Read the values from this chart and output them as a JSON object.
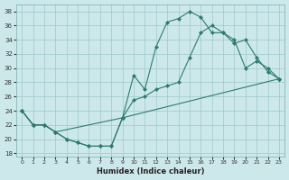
{
  "xlabel": "Humidex (Indice chaleur)",
  "bg_color": "#cce8ea",
  "grid_color": "#9ec8cc",
  "line_color": "#2d7b6e",
  "xlim": [
    -0.5,
    23.5
  ],
  "ylim": [
    17.5,
    39
  ],
  "xticks": [
    0,
    1,
    2,
    3,
    4,
    5,
    6,
    7,
    8,
    9,
    10,
    11,
    12,
    13,
    14,
    15,
    16,
    17,
    18,
    19,
    20,
    21,
    22,
    23
  ],
  "yticks": [
    18,
    20,
    22,
    24,
    26,
    28,
    30,
    32,
    34,
    36,
    38
  ],
  "line1_x": [
    0,
    1,
    2,
    3,
    4,
    5,
    6,
    7,
    8,
    9,
    10,
    11,
    12,
    13,
    14,
    15,
    16,
    17,
    18,
    19,
    20,
    21,
    22,
    23
  ],
  "line1_y": [
    24,
    22,
    22,
    21,
    20,
    19.5,
    19,
    19,
    19,
    23,
    29,
    27,
    33,
    36.5,
    37,
    38,
    37.2,
    35,
    35,
    34,
    30,
    31,
    30,
    28.5
  ],
  "line2_x": [
    0,
    1,
    2,
    3,
    9,
    10,
    11,
    12,
    13,
    14,
    15,
    16,
    17,
    18,
    19,
    20,
    21,
    22,
    23
  ],
  "line2_y": [
    24,
    22,
    22,
    21,
    23,
    25.5,
    26,
    27,
    27.5,
    28,
    31.5,
    35,
    36,
    35,
    33.5,
    34,
    31.5,
    29.5,
    28.5
  ],
  "line3_x": [
    0,
    1,
    2,
    3,
    4,
    5,
    6,
    7,
    8,
    9,
    23
  ],
  "line3_y": [
    24,
    22,
    22,
    21,
    20,
    19.5,
    19,
    19,
    19,
    23,
    28.5
  ]
}
